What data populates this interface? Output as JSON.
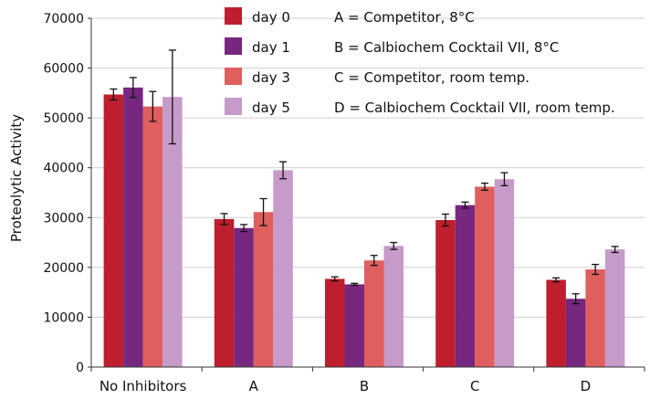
{
  "chart_data": {
    "type": "bar",
    "title": "",
    "xlabel": "",
    "ylabel": "Proteolytic Activity",
    "ylim": [
      0,
      70000
    ],
    "yticks": [
      0,
      10000,
      20000,
      30000,
      40000,
      50000,
      60000,
      70000
    ],
    "grid": true,
    "legend_position": "top",
    "categories": [
      "No Inhibitors",
      "A",
      "B",
      "C",
      "D"
    ],
    "series": [
      {
        "name": "day 0",
        "color": "#be1e2d",
        "values": [
          54700,
          29700,
          17700,
          29500,
          17500
        ],
        "errors": [
          1100,
          1100,
          400,
          1200,
          400
        ]
      },
      {
        "name": "day 1",
        "color": "#77277f",
        "values": [
          56100,
          27900,
          16600,
          32500,
          13700
        ],
        "errors": [
          2000,
          700,
          200,
          600,
          1000
        ]
      },
      {
        "name": "day 3",
        "color": "#df5f5f",
        "values": [
          52300,
          31100,
          21400,
          36200,
          19600
        ],
        "errors": [
          3000,
          2700,
          1000,
          700,
          1000
        ]
      },
      {
        "name": "day 5",
        "color": "#c69ac9",
        "values": [
          54200,
          39500,
          24300,
          37700,
          23600
        ],
        "errors": [
          9400,
          1700,
          700,
          1300,
          600
        ]
      }
    ],
    "annotations": [
      "A = Competitor, 8°C",
      "B = Calbiochem Cocktail VII, 8°C",
      "C = Competitor, room temp.",
      "D = Calbiochem Cocktail VII, room temp."
    ]
  }
}
